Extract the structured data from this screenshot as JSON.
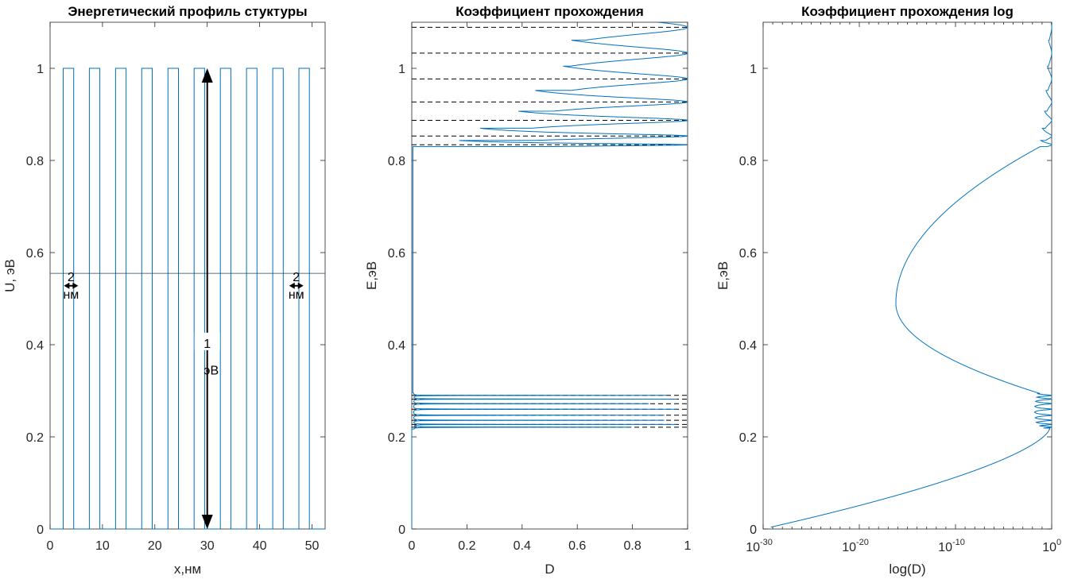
{
  "chart_data": [
    {
      "type": "line",
      "title": "Энергетический профиль стуктуры",
      "xlabel": "x,нм",
      "ylabel": "U, эВ",
      "xlim": [
        0,
        52.5
      ],
      "ylim": [
        0,
        1.1
      ],
      "xticks": [
        0,
        10,
        20,
        30,
        40,
        50
      ],
      "yticks": [
        0,
        0.2,
        0.4,
        0.6,
        0.8,
        1
      ],
      "series": [
        {
          "color": "#0072bd",
          "barriers": [
            [
              2.5,
              4.5
            ],
            [
              7.5,
              9.5
            ],
            [
              12.5,
              14.5
            ],
            [
              17.5,
              19.5
            ],
            [
              22.5,
              24.5
            ],
            [
              27.5,
              29.5
            ],
            [
              32.5,
              34.5
            ],
            [
              37.5,
              39.5
            ],
            [
              42.5,
              44.5
            ],
            [
              47.5,
              49.5
            ]
          ],
          "barrier_height": 1,
          "x_range": [
            0,
            52.5
          ]
        }
      ],
      "hline": 0.555,
      "annotations": [
        {
          "text": "2",
          "text2": "нм",
          "x": 4,
          "y": 0.528
        },
        {
          "text": "2",
          "text2": "нм",
          "x": 47,
          "y": 0.528
        },
        {
          "text": "1",
          "text2": "эВ",
          "x": 30,
          "y": 0.38
        }
      ],
      "arrow": {
        "x": 30,
        "y_from": 0,
        "y_to": 1
      }
    },
    {
      "type": "line",
      "title": "Коэффициент прохождения",
      "xlabel": "D",
      "ylabel": "E,эВ",
      "xlim": [
        0,
        1
      ],
      "ylim": [
        0,
        1.1
      ],
      "xticks": [
        0,
        0.2,
        0.4,
        0.6,
        0.8,
        1
      ],
      "yticks": [
        0,
        0.2,
        0.4,
        0.6,
        0.8,
        1
      ],
      "resonance_levels": [
        0.221,
        0.227,
        0.236,
        0.247,
        0.26,
        0.272,
        0.282,
        0.29,
        0.834,
        0.853,
        0.887,
        0.927,
        0.977,
        1.033,
        1.089
      ],
      "band_edges": [
        0.219,
        0.294,
        0.83
      ],
      "color": "#0072bd"
    },
    {
      "type": "line",
      "title": "Коэффициент прохождения log",
      "xlabel": "log(D)",
      "ylabel": "E,эВ",
      "xscale": "log",
      "xlim": [
        -30,
        0
      ],
      "ylim": [
        0,
        1.1
      ],
      "xtick_exponents": [
        "-30",
        "-20",
        "-10",
        "0"
      ],
      "yticks": [
        0,
        0.2,
        0.4,
        0.6,
        0.8,
        1
      ],
      "gap_minimum": {
        "E": 0.49,
        "log10D": -16.2
      },
      "color": "#0072bd"
    }
  ]
}
